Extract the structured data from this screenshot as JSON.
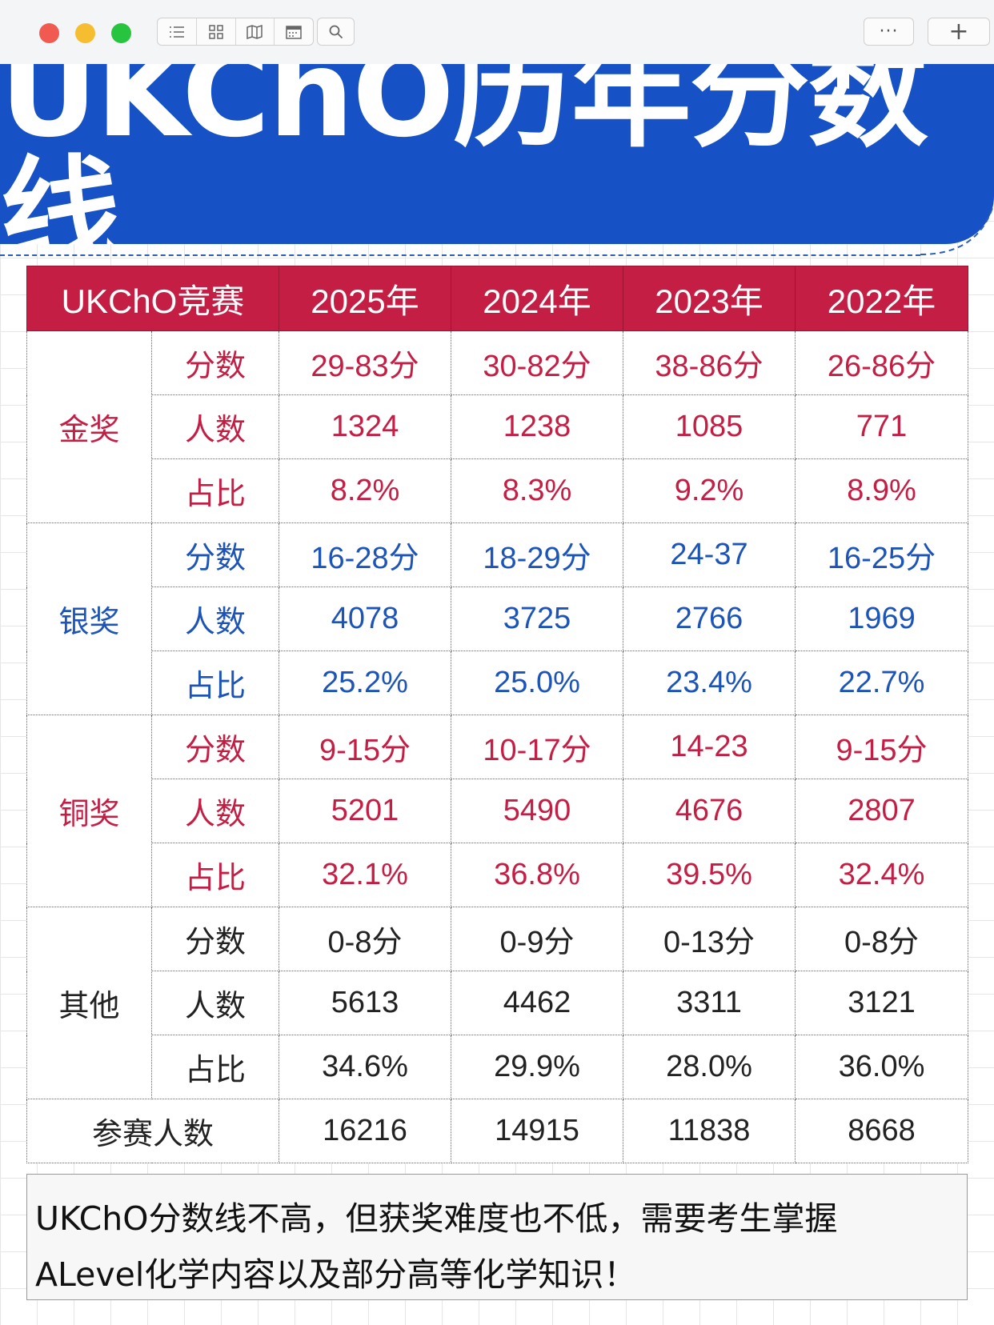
{
  "window": {
    "controls": [
      "close",
      "minimize",
      "zoom"
    ],
    "toolbar_icons": [
      "list-view-icon",
      "grid-view-icon",
      "map-icon",
      "calendar-icon",
      "search-icon",
      "more-icon",
      "add-icon"
    ],
    "more_label": "···",
    "add_label": "+"
  },
  "banner": {
    "title": "UKChO历年分数线"
  },
  "table": {
    "header": [
      "UKChO竞赛",
      "2025年",
      "2024年",
      "2023年",
      "2022年"
    ],
    "groups": [
      {
        "name": "金奖",
        "color": "#c41e44",
        "rows": [
          {
            "label": "分数",
            "values": [
              "29-83分",
              "30-82分",
              "38-86分",
              "26-86分"
            ]
          },
          {
            "label": "人数",
            "values": [
              "1324",
              "1238",
              "1085",
              "771"
            ]
          },
          {
            "label": "占比",
            "values": [
              "8.2%",
              "8.3%",
              "9.2%",
              "8.9%"
            ]
          }
        ]
      },
      {
        "name": "银奖",
        "color": "#1d54b8",
        "rows": [
          {
            "label": "分数",
            "values": [
              "16-28分",
              "18-29分",
              "24-37",
              "16-25分"
            ]
          },
          {
            "label": "人数",
            "values": [
              "4078",
              "3725",
              "2766",
              "1969"
            ]
          },
          {
            "label": "占比",
            "values": [
              "25.2%",
              "25.0%",
              "23.4%",
              "22.7%"
            ]
          }
        ]
      },
      {
        "name": "铜奖",
        "color": "#c41e44",
        "rows": [
          {
            "label": "分数",
            "values": [
              "9-15分",
              "10-17分",
              "14-23",
              "9-15分"
            ]
          },
          {
            "label": "人数",
            "values": [
              "5201",
              "5490",
              "4676",
              "2807"
            ]
          },
          {
            "label": "占比",
            "values": [
              "32.1%",
              "36.8%",
              "39.5%",
              "32.4%"
            ]
          }
        ]
      },
      {
        "name": "其他",
        "color": "#222222",
        "rows": [
          {
            "label": "分数",
            "values": [
              "0-8分",
              "0-9分",
              "0-13分",
              "0-8分"
            ]
          },
          {
            "label": "人数",
            "values": [
              "5613",
              "4462",
              "3311",
              "3121"
            ]
          },
          {
            "label": "占比",
            "values": [
              "34.6%",
              "29.9%",
              "28.0%",
              "36.0%"
            ]
          }
        ]
      }
    ],
    "total": {
      "label": "参赛人数",
      "values": [
        "16216",
        "14915",
        "11838",
        "8668"
      ]
    }
  },
  "note": {
    "line1": "UKChO分数线不高，但获奖难度也不低，需要考生掌握",
    "line2": "ALevel化学内容以及部分高等化学知识！"
  }
}
